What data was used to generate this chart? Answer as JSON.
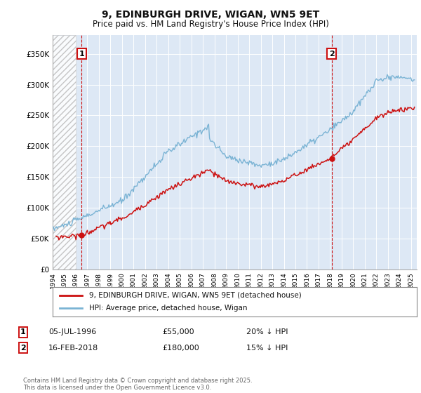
{
  "title": "9, EDINBURGH DRIVE, WIGAN, WN5 9ET",
  "subtitle": "Price paid vs. HM Land Registry's House Price Index (HPI)",
  "xlim_start": 1994.0,
  "xlim_end": 2025.5,
  "ylim": [
    0,
    380000
  ],
  "yticks": [
    0,
    50000,
    100000,
    150000,
    200000,
    250000,
    300000,
    350000
  ],
  "ytick_labels": [
    "£0",
    "£50K",
    "£100K",
    "£150K",
    "£200K",
    "£250K",
    "£300K",
    "£350K"
  ],
  "hpi_color": "#7ab3d4",
  "price_color": "#cc1111",
  "dashed_line_color": "#cc1111",
  "hatch_region_end": 1996.0,
  "ann1_x": 1996.5,
  "ann1_y": 55000,
  "ann2_x": 2018.13,
  "ann2_y": 180000,
  "vline1_x": 1996.5,
  "vline2_x": 2018.13,
  "annotation1": {
    "label": "1",
    "date": "05-JUL-1996",
    "price": "£55,000",
    "hpi_change": "20% ↓ HPI"
  },
  "annotation2": {
    "label": "2",
    "date": "16-FEB-2018",
    "price": "£180,000",
    "hpi_change": "15% ↓ HPI"
  },
  "legend_price_label": "9, EDINBURGH DRIVE, WIGAN, WN5 9ET (detached house)",
  "legend_hpi_label": "HPI: Average price, detached house, Wigan",
  "footer": "Contains HM Land Registry data © Crown copyright and database right 2025.\nThis data is licensed under the Open Government Licence v3.0.",
  "background_color": "#ffffff",
  "plot_bg_color": "#dde8f5",
  "grid_color": "#ffffff"
}
